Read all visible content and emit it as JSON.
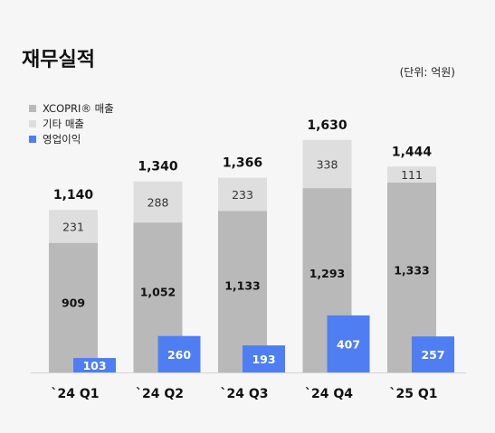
{
  "page": {
    "title": "재무실적",
    "unit_note": "(단위: 억원)"
  },
  "legend": [
    {
      "label": "XCOPRI® 매출",
      "color": "#b9b9b9"
    },
    {
      "label": "기타 매출",
      "color": "#dedede"
    },
    {
      "label": "영업이익",
      "color": "#4f7ef3"
    }
  ],
  "colors": {
    "xcopri": "#b9b9b9",
    "other": "#dedede",
    "operating_profit": "#4f7ef3",
    "text": "#111111"
  },
  "chart_data": {
    "type": "bar",
    "categories": [
      "`24 Q1",
      "`24 Q2",
      "`24 Q3",
      "`24 Q4",
      "`25 Q1"
    ],
    "series": [
      {
        "name": "XCOPRI® 매출",
        "values": [
          909,
          1052,
          1133,
          1293,
          1333
        ]
      },
      {
        "name": "기타 매출",
        "values": [
          231,
          288,
          233,
          338,
          111
        ]
      },
      {
        "name": "영업이익",
        "values": [
          103,
          260,
          193,
          407,
          257
        ]
      }
    ],
    "totals": [
      1140,
      1340,
      1366,
      1630,
      1444
    ],
    "total_labels": [
      "1,140",
      "1,340",
      "1,366",
      "1,630",
      "1,444"
    ],
    "value_labels": {
      "xcopri": [
        "909",
        "1,052",
        "1,133",
        "1,293",
        "1,333"
      ],
      "other": [
        "231",
        "288",
        "233",
        "338",
        "111"
      ],
      "operating_profit": [
        "103",
        "260",
        "193",
        "407",
        "257"
      ]
    },
    "stacked": [
      "XCOPRI® 매출",
      "기타 매출"
    ],
    "grid": false,
    "legend_position": "top-left"
  }
}
